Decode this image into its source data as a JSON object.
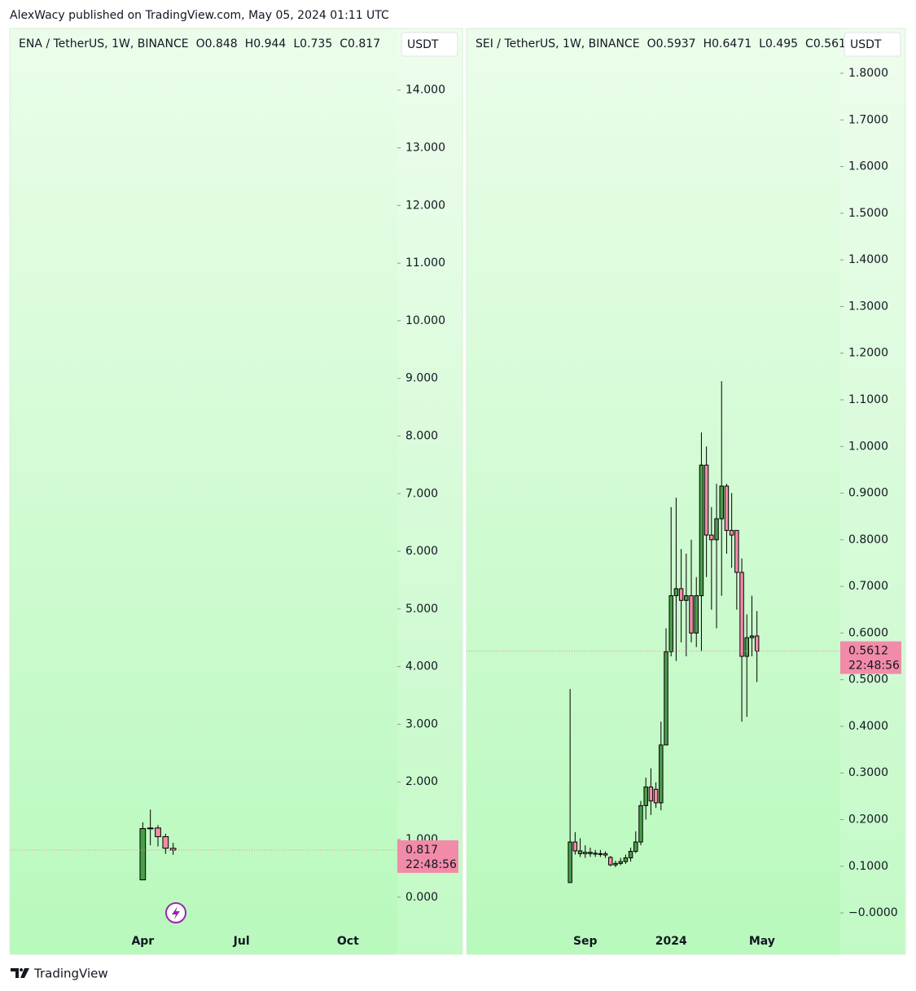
{
  "header": "AlexWacy published on TradingView.com, May 05, 2024 01:11 UTC",
  "footer": "TradingView",
  "chart_data": [
    {
      "type": "candlestick",
      "symbol": "ENA / TetherUS, 1W, BINANCE",
      "ohlc_keys": [
        "O",
        "H",
        "L",
        "C"
      ],
      "currency": "USDT",
      "countdown": "22:48:56",
      "up_color": "#4a9e4a",
      "down_color": "#f28ba8",
      "grid": false,
      "categories": [
        null,
        null,
        null,
        null,
        null,
        null,
        null,
        null,
        null,
        null,
        null,
        null,
        null,
        null,
        null,
        null,
        null,
        "Apr",
        null,
        null,
        null,
        null,
        null,
        null,
        null,
        null,
        null,
        null,
        null,
        null,
        "Jul",
        null,
        null,
        null,
        null,
        null,
        null,
        null,
        null,
        null,
        null,
        null,
        null,
        null,
        "Oct",
        null,
        null,
        null,
        null,
        null,
        null
      ],
      "open": [
        null,
        null,
        null,
        null,
        null,
        null,
        null,
        null,
        null,
        null,
        null,
        null,
        null,
        null,
        null,
        null,
        null,
        0.3,
        1.19,
        1.2,
        1.05,
        0.848,
        null,
        null,
        null,
        null,
        null,
        null,
        null,
        null,
        null,
        null,
        null,
        null,
        null,
        null,
        null,
        null,
        null,
        null,
        null,
        null,
        null,
        null,
        null,
        null,
        null,
        null,
        null,
        null,
        null
      ],
      "high": [
        null,
        null,
        null,
        null,
        null,
        null,
        null,
        null,
        null,
        null,
        null,
        null,
        null,
        null,
        null,
        null,
        null,
        1.3,
        1.52,
        1.25,
        1.1,
        0.944,
        null,
        null,
        null,
        null,
        null,
        null,
        null,
        null,
        null,
        null,
        null,
        null,
        null,
        null,
        null,
        null,
        null,
        null,
        null,
        null,
        null,
        null,
        null,
        null,
        null,
        null,
        null,
        null,
        null
      ],
      "low": [
        null,
        null,
        null,
        null,
        null,
        null,
        null,
        null,
        null,
        null,
        null,
        null,
        null,
        null,
        null,
        null,
        null,
        0.3,
        0.9,
        0.88,
        0.75,
        0.735,
        null,
        null,
        null,
        null,
        null,
        null,
        null,
        null,
        null,
        null,
        null,
        null,
        null,
        null,
        null,
        null,
        null,
        null,
        null,
        null,
        null,
        null,
        null,
        null,
        null,
        null,
        null,
        null,
        null
      ],
      "close": [
        null,
        null,
        null,
        null,
        null,
        null,
        null,
        null,
        null,
        null,
        null,
        null,
        null,
        null,
        null,
        null,
        null,
        1.19,
        1.2,
        1.05,
        0.85,
        0.817,
        null,
        null,
        null,
        null,
        null,
        null,
        null,
        null,
        null,
        null,
        null,
        null,
        null,
        null,
        null,
        null,
        null,
        null,
        null,
        null,
        null,
        null,
        null,
        null,
        null,
        null,
        null,
        null,
        null
      ],
      "ylim": [
        -0.54,
        15.07
      ],
      "yticks": [
        {
          "value": 0,
          "label": "0.000"
        },
        {
          "value": 1,
          "label": "1.000"
        },
        {
          "value": 2,
          "label": "2.000"
        },
        {
          "value": 3,
          "label": "3.000"
        },
        {
          "value": 4,
          "label": "4.000"
        },
        {
          "value": 5,
          "label": "5.000"
        },
        {
          "value": 6,
          "label": "6.000"
        },
        {
          "value": 7,
          "label": "7.000"
        },
        {
          "value": 8,
          "label": "8.000"
        },
        {
          "value": 9,
          "label": "9.000"
        },
        {
          "value": 10,
          "label": "10.000"
        },
        {
          "value": 11,
          "label": "11.000"
        },
        {
          "value": 12,
          "label": "12.000"
        },
        {
          "value": 13,
          "label": "13.000"
        },
        {
          "value": 14,
          "label": "14.000"
        }
      ]
    },
    {
      "type": "candlestick",
      "symbol": "SEI / TetherUS, 1W, BINANCE",
      "ohlc_keys": [
        "O",
        "H",
        "L",
        "C"
      ],
      "currency": "USDT",
      "countdown": "22:48:56",
      "up_color": "#4a9e4a",
      "down_color": "#f28ba8",
      "grid": false,
      "categories": [
        null,
        null,
        null,
        null,
        null,
        null,
        null,
        null,
        null,
        null,
        null,
        null,
        null,
        null,
        null,
        null,
        null,
        null,
        null,
        null,
        null,
        null,
        null,
        "Sep",
        null,
        null,
        null,
        null,
        null,
        null,
        null,
        null,
        null,
        null,
        null,
        null,
        null,
        null,
        null,
        null,
        "2024",
        null,
        null,
        null,
        null,
        null,
        null,
        null,
        null,
        null,
        null,
        null,
        null,
        null,
        null,
        null,
        null,
        null,
        "May",
        null,
        null,
        null,
        null,
        null,
        null,
        null,
        null,
        null,
        null,
        null,
        null,
        null,
        null,
        null
      ],
      "open": [
        null,
        null,
        null,
        null,
        null,
        null,
        null,
        null,
        null,
        null,
        null,
        null,
        null,
        null,
        null,
        null,
        null,
        null,
        null,
        null,
        0.065,
        0.152,
        0.127,
        0.13,
        0.127,
        0.128,
        0.126,
        0.127,
        0.119,
        0.103,
        0.106,
        0.11,
        0.118,
        0.132,
        0.152,
        0.23,
        0.27,
        0.265,
        0.236,
        0.36,
        0.56,
        0.68,
        0.695,
        0.67,
        0.68,
        0.6,
        0.68,
        0.96,
        0.81,
        0.8,
        0.845,
        0.915,
        0.82,
        0.82,
        0.73,
        0.55,
        0.59,
        0.5937,
        null,
        null,
        null,
        null,
        null,
        null,
        null,
        null,
        null,
        null,
        null,
        null,
        null,
        null,
        null,
        null
      ],
      "high": [
        null,
        null,
        null,
        null,
        null,
        null,
        null,
        null,
        null,
        null,
        null,
        null,
        null,
        null,
        null,
        null,
        null,
        null,
        null,
        null,
        0.48,
        0.173,
        0.16,
        0.145,
        0.14,
        0.135,
        0.135,
        0.132,
        0.122,
        0.112,
        0.118,
        0.125,
        0.14,
        0.175,
        0.24,
        0.29,
        0.31,
        0.28,
        0.41,
        0.61,
        0.87,
        0.89,
        0.78,
        0.77,
        0.8,
        0.72,
        1.03,
        1.0,
        0.87,
        0.92,
        1.14,
        0.92,
        0.9,
        0.82,
        0.76,
        0.64,
        0.68,
        0.6471,
        null,
        null,
        null,
        null,
        null,
        null,
        null,
        null,
        null,
        null,
        null,
        null,
        null,
        null,
        null,
        null
      ],
      "low": [
        null,
        null,
        null,
        null,
        null,
        null,
        null,
        null,
        null,
        null,
        null,
        null,
        null,
        null,
        null,
        null,
        null,
        null,
        null,
        null,
        0.065,
        0.125,
        0.12,
        0.118,
        0.12,
        0.12,
        0.12,
        0.118,
        0.1,
        0.098,
        0.102,
        0.105,
        0.11,
        0.128,
        0.145,
        0.2,
        0.21,
        0.225,
        0.22,
        0.36,
        0.55,
        0.54,
        0.58,
        0.55,
        0.58,
        0.57,
        0.56,
        0.72,
        0.65,
        0.61,
        0.68,
        0.77,
        0.74,
        0.65,
        0.41,
        0.42,
        0.55,
        0.495,
        null,
        null,
        null,
        null,
        null,
        null,
        null,
        null,
        null,
        null,
        null,
        null,
        null,
        null,
        null,
        null
      ],
      "close": [
        null,
        null,
        null,
        null,
        null,
        null,
        null,
        null,
        null,
        null,
        null,
        null,
        null,
        null,
        null,
        null,
        null,
        null,
        null,
        null,
        0.152,
        0.133,
        0.133,
        0.127,
        0.13,
        0.126,
        0.127,
        0.124,
        0.103,
        0.106,
        0.11,
        0.118,
        0.132,
        0.152,
        0.23,
        0.27,
        0.24,
        0.236,
        0.36,
        0.56,
        0.68,
        0.695,
        0.67,
        0.68,
        0.6,
        0.68,
        0.96,
        0.81,
        0.8,
        0.845,
        0.915,
        0.82,
        0.81,
        0.73,
        0.55,
        0.59,
        0.5937,
        0.5612,
        null,
        null,
        null,
        null,
        null,
        null,
        null,
        null,
        null,
        null,
        null,
        null,
        null,
        null,
        null,
        null
      ],
      "ylim": [
        -0.033,
        1.896
      ],
      "yticks": [
        {
          "value": 0,
          "label": "−0.0000"
        },
        {
          "value": 0.1,
          "label": "0.1000"
        },
        {
          "value": 0.2,
          "label": "0.2000"
        },
        {
          "value": 0.3,
          "label": "0.3000"
        },
        {
          "value": 0.4,
          "label": "0.4000"
        },
        {
          "value": 0.5,
          "label": "0.5000"
        },
        {
          "value": 0.6,
          "label": "0.6000"
        },
        {
          "value": 0.7,
          "label": "0.7000"
        },
        {
          "value": 0.8,
          "label": "0.8000"
        },
        {
          "value": 0.9,
          "label": "0.9000"
        },
        {
          "value": 1,
          "label": "1.0000"
        },
        {
          "value": 1.1,
          "label": "1.1000"
        },
        {
          "value": 1.2,
          "label": "1.2000"
        },
        {
          "value": 1.3,
          "label": "1.3000"
        },
        {
          "value": 1.4,
          "label": "1.4000"
        },
        {
          "value": 1.5,
          "label": "1.5000"
        },
        {
          "value": 1.6,
          "label": "1.6000"
        },
        {
          "value": 1.7,
          "label": "1.7000"
        },
        {
          "value": 1.8,
          "label": "1.8000"
        }
      ]
    }
  ]
}
